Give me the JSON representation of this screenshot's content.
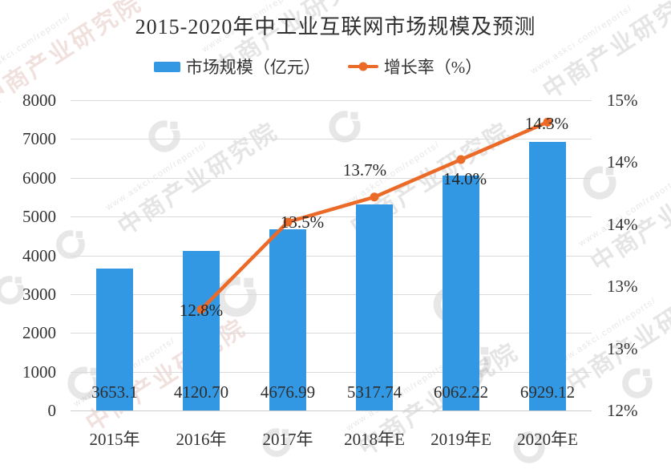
{
  "title": "2015-2020年中工业互联网市场规模及预测",
  "legend": {
    "bar_label": "市场规模（亿元）",
    "line_label": "增长率（%）"
  },
  "colors": {
    "bar": "#3398e4",
    "line": "#ec6a28",
    "text": "#333333",
    "grid": "#dadada",
    "watermark": "#e2e2e2"
  },
  "watermark": {
    "brand": "中商产业研究院",
    "url": "www.askci.com/reports/"
  },
  "chart_data": {
    "type": "bar",
    "subtype": "combo-bar-line-dual-axis",
    "title": "2015-2020年中工业互联网市场规模及预测",
    "categories": [
      "2015年",
      "2016年",
      "2017年",
      "2018年E",
      "2019年E",
      "2020年E"
    ],
    "series": [
      {
        "name": "市场规模（亿元）",
        "type": "bar",
        "axis": "left",
        "values": [
          3653.1,
          4120.7,
          4676.99,
          5317.74,
          6062.22,
          6929.12
        ],
        "data_labels": [
          "3653.1",
          "4120.70",
          "4676.99",
          "5317.74",
          "6062.22",
          "6929.12"
        ]
      },
      {
        "name": "增长率（%）",
        "type": "line",
        "axis": "right",
        "values": [
          null,
          12.8,
          13.5,
          13.7,
          14.0,
          14.3
        ],
        "data_labels": [
          null,
          "12.8%",
          "13.5%",
          "13.7%",
          "14.0%",
          "14.3%"
        ]
      }
    ],
    "y_left": {
      "lim": [
        0,
        8000
      ],
      "tick_interval": 1000,
      "ticks_bottom_to_top": [
        "0",
        "1000",
        "2000",
        "3000",
        "4000",
        "5000",
        "6000",
        "7000",
        "8000"
      ]
    },
    "y_right": {
      "lim": [
        12,
        15
      ],
      "ticks_top_to_bottom": [
        "15%",
        "14%",
        "14%",
        "13%",
        "13%",
        "12%"
      ]
    },
    "grid": "horizontal",
    "legend_position": "top"
  }
}
